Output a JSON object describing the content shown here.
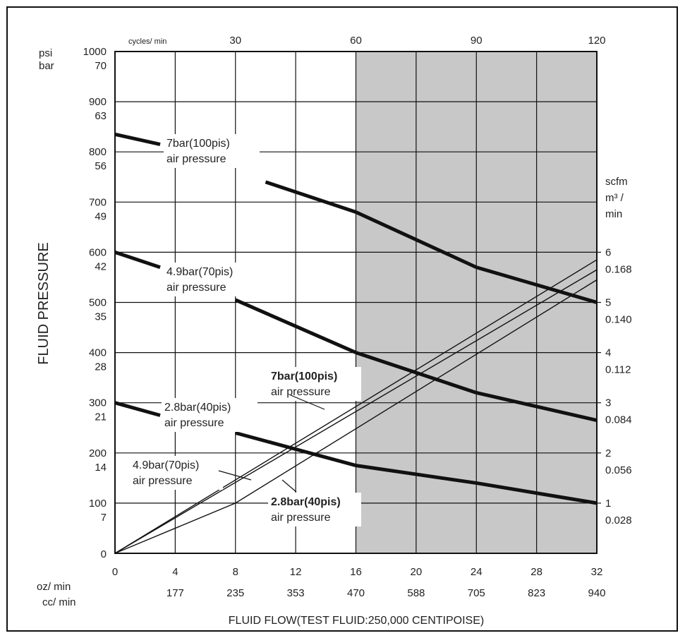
{
  "chart_data": {
    "type": "line",
    "ylabel": "FLUID PRESSURE",
    "xlabel": "FLUID FLOW(TEST FLUID:250,000 CENTIPOISE)",
    "x_units": {
      "oz": "oz/ min",
      "cc": "cc/ min"
    },
    "y_units": {
      "psi": "psi",
      "bar": "bar"
    },
    "top_units": "cycles/ min",
    "right_units": {
      "scfm": "scfm",
      "m3": "m³ /",
      "min": "min"
    },
    "xlim": [
      0,
      32
    ],
    "ylim": [
      0,
      1000
    ],
    "x_ticks": [
      {
        "oz": "0",
        "cc": ""
      },
      {
        "oz": "4",
        "cc": "177"
      },
      {
        "oz": "8",
        "cc": "235"
      },
      {
        "oz": "12",
        "cc": "353"
      },
      {
        "oz": "16",
        "cc": "470"
      },
      {
        "oz": "20",
        "cc": "588"
      },
      {
        "oz": "24",
        "cc": "705"
      },
      {
        "oz": "28",
        "cc": "823"
      },
      {
        "oz": "32",
        "cc": "940"
      }
    ],
    "y_ticks": [
      {
        "psi": "0",
        "bar": ""
      },
      {
        "psi": "100",
        "bar": "7"
      },
      {
        "psi": "200",
        "bar": "14"
      },
      {
        "psi": "300",
        "bar": "21"
      },
      {
        "psi": "400",
        "bar": "28"
      },
      {
        "psi": "500",
        "bar": "35"
      },
      {
        "psi": "600",
        "bar": "42"
      },
      {
        "psi": "700",
        "bar": "49"
      },
      {
        "psi": "800",
        "bar": "56"
      },
      {
        "psi": "900",
        "bar": "63"
      },
      {
        "psi": "1000",
        "bar": "70"
      }
    ],
    "top_ticks": [
      "30",
      "60",
      "90",
      "120"
    ],
    "right_ticks": [
      {
        "scfm": "1",
        "m3": "0.028"
      },
      {
        "scfm": "2",
        "m3": "0.056"
      },
      {
        "scfm": "3",
        "m3": "0.084"
      },
      {
        "scfm": "4",
        "m3": "0.112"
      },
      {
        "scfm": "5",
        "m3": "0.140"
      },
      {
        "scfm": "6",
        "m3": "0.168"
      }
    ],
    "shaded_region_x": [
      16,
      32
    ],
    "grid": true,
    "fluid_pressure_series": [
      {
        "label_line1": "7bar(100pis)",
        "label_line2": "air pressure",
        "x": [
          0,
          3,
          10,
          16,
          24,
          32
        ],
        "y": [
          835,
          815,
          740,
          680,
          570,
          500
        ]
      },
      {
        "label_line1": "4.9bar(70pis)",
        "label_line2": "air pressure",
        "x": [
          0,
          3,
          8,
          16,
          24,
          32
        ],
        "y": [
          600,
          570,
          505,
          400,
          320,
          265
        ]
      },
      {
        "label_line1": "2.8bar(40pis)",
        "label_line2": "air pressure",
        "x": [
          0,
          3,
          8,
          16,
          24,
          32
        ],
        "y": [
          300,
          275,
          240,
          175,
          140,
          100
        ]
      }
    ],
    "air_consumption_series": [
      {
        "label_line1": "7bar(100pis)",
        "label_line2": "air pressure",
        "x": [
          0,
          32
        ],
        "y_scfm": [
          0,
          5.85
        ]
      },
      {
        "label_line1": "4.9bar(70pis)",
        "label_line2": "air pressure",
        "x": [
          0,
          32
        ],
        "y_scfm": [
          0,
          5.65
        ]
      },
      {
        "label_line1": "2.8bar(40pis)",
        "label_line2": "air pressure",
        "x": [
          0,
          8,
          32
        ],
        "y_scfm": [
          0,
          1.0,
          5.45
        ]
      }
    ]
  }
}
